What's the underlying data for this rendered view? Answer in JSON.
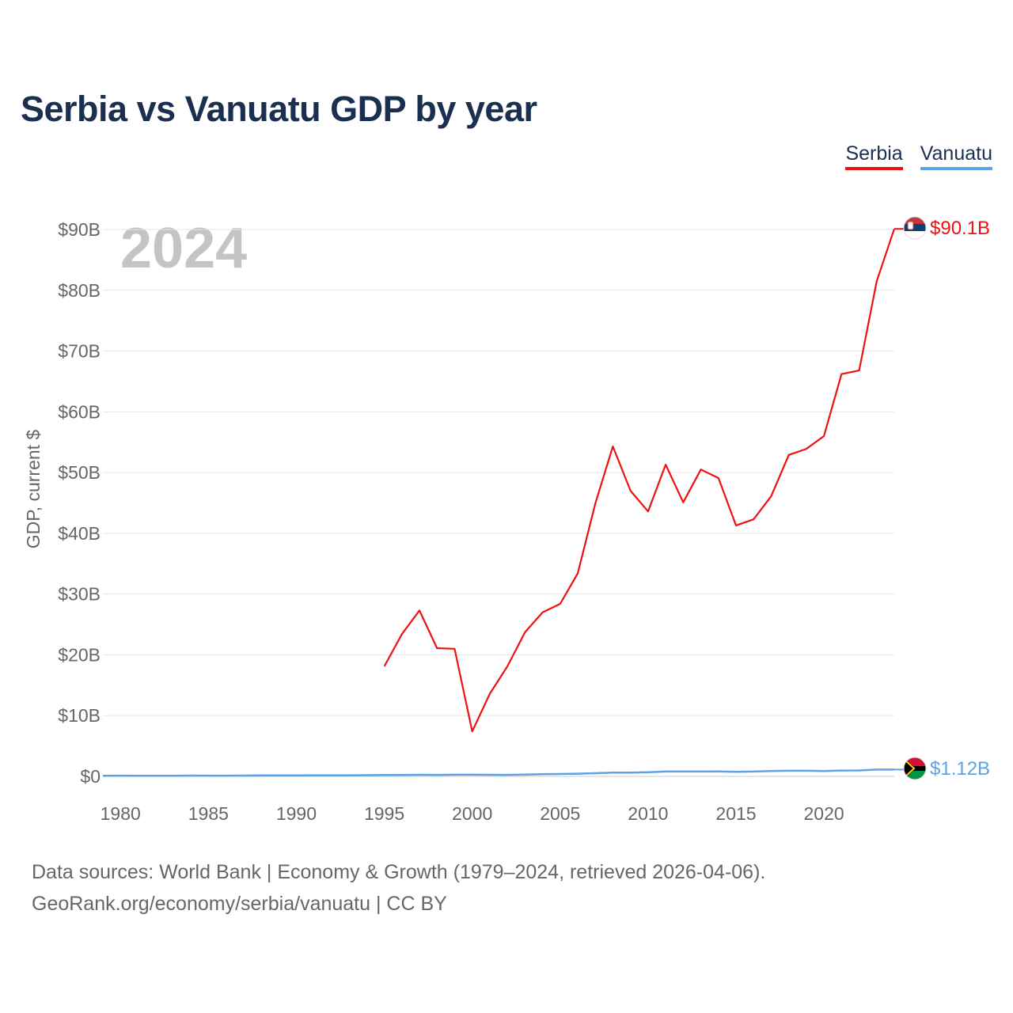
{
  "page": {
    "title": "Serbia vs Vanuatu GDP by year",
    "year_watermark": "2024",
    "footer_line1": "Data sources: World Bank | Economy & Growth (1979–2024, retrieved 2026-04-06).",
    "footer_line2": "GeoRank.org/economy/serbia/vanuatu | CC BY"
  },
  "chart_data": {
    "type": "line",
    "title": "Serbia vs Vanuatu GDP by year",
    "xlabel": "",
    "ylabel": "GDP, current $",
    "xlim": [
      1979,
      2024
    ],
    "ylim": [
      0,
      90
    ],
    "y_unit": "billion US$",
    "x_ticks": [
      1980,
      1985,
      1990,
      1995,
      2000,
      2005,
      2010,
      2015,
      2020
    ],
    "y_ticks": [
      0,
      10,
      20,
      30,
      40,
      50,
      60,
      70,
      80,
      90
    ],
    "y_tick_labels": [
      "$0",
      "$10B",
      "$20B",
      "$30B",
      "$40B",
      "$50B",
      "$60B",
      "$70B",
      "$80B",
      "$90B"
    ],
    "grid": true,
    "legend_position": "top-right",
    "series": [
      {
        "name": "Serbia",
        "color": "#ee1111",
        "end_label": "$90.1B",
        "flag": "serbia-flag",
        "x": [
          1995,
          1996,
          1997,
          1998,
          1999,
          2000,
          2001,
          2002,
          2003,
          2004,
          2005,
          2006,
          2007,
          2008,
          2009,
          2010,
          2011,
          2012,
          2013,
          2014,
          2015,
          2016,
          2017,
          2018,
          2019,
          2020,
          2021,
          2022,
          2023,
          2024
        ],
        "values": [
          18.1,
          23.4,
          27.3,
          21.1,
          21.0,
          7.4,
          13.6,
          18.1,
          23.7,
          27.0,
          28.4,
          33.4,
          44.9,
          54.3,
          47.0,
          43.6,
          51.3,
          45.1,
          50.5,
          49.1,
          41.3,
          42.3,
          46.1,
          52.9,
          53.9,
          56.0,
          66.2,
          66.8,
          81.5,
          90.1
        ]
      },
      {
        "name": "Vanuatu",
        "color": "#5ba3e6",
        "end_label": "$1.12B",
        "flag": "vanuatu-flag",
        "x": [
          1979,
          1980,
          1981,
          1982,
          1983,
          1984,
          1985,
          1986,
          1987,
          1988,
          1989,
          1990,
          1991,
          1992,
          1993,
          1994,
          1995,
          1996,
          1997,
          1998,
          1999,
          2000,
          2001,
          2002,
          2003,
          2004,
          2005,
          2006,
          2007,
          2008,
          2009,
          2010,
          2011,
          2012,
          2013,
          2014,
          2015,
          2016,
          2017,
          2018,
          2019,
          2020,
          2021,
          2022,
          2023,
          2024
        ],
        "values": [
          0.09,
          0.12,
          0.11,
          0.11,
          0.11,
          0.13,
          0.12,
          0.12,
          0.13,
          0.15,
          0.15,
          0.15,
          0.18,
          0.18,
          0.18,
          0.2,
          0.23,
          0.24,
          0.26,
          0.25,
          0.27,
          0.27,
          0.26,
          0.25,
          0.3,
          0.35,
          0.39,
          0.44,
          0.52,
          0.61,
          0.61,
          0.68,
          0.79,
          0.79,
          0.8,
          0.81,
          0.74,
          0.8,
          0.88,
          0.92,
          0.93,
          0.88,
          0.96,
          0.98,
          1.12,
          1.12
        ]
      }
    ]
  }
}
